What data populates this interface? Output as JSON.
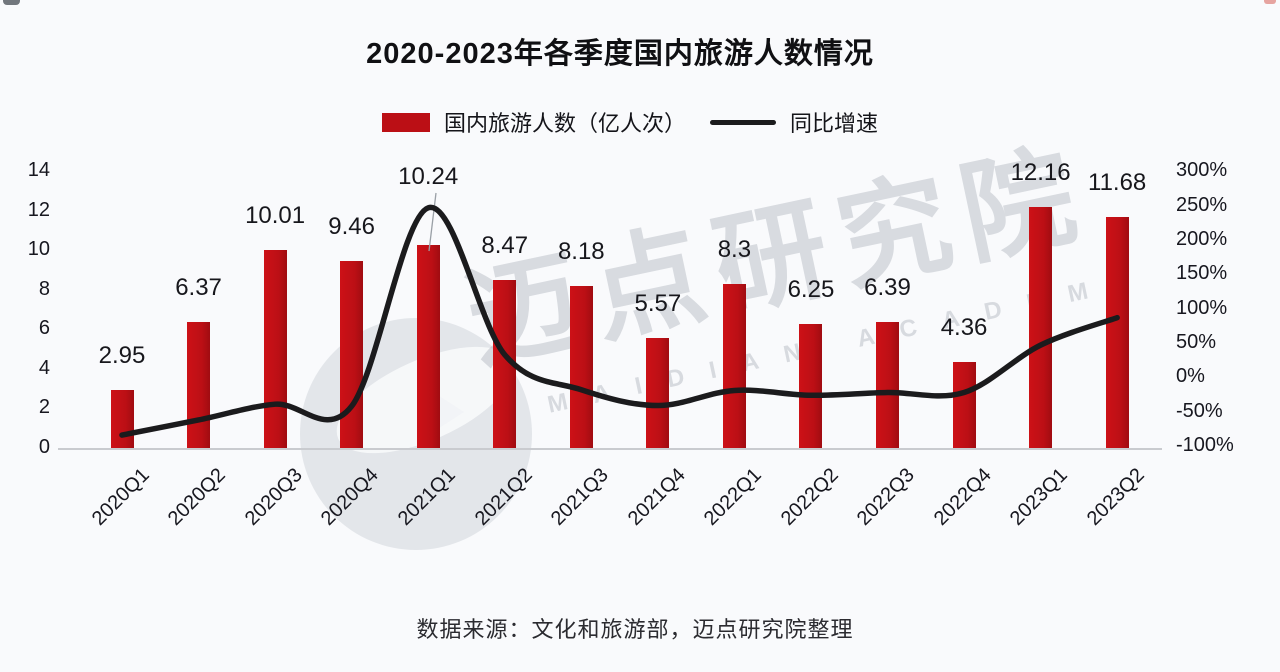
{
  "title": "2020-2023年各季度国内旅游人数情况",
  "legend": {
    "bars_label": "国内旅游人数（亿人次）",
    "line_label": "同比增速"
  },
  "source_note": "数据来源：文化和旅游部，迈点研究院整理",
  "watermark": {
    "text": "迈点研究院",
    "subtext": "MAIDIAN ACADEMY"
  },
  "colors": {
    "bar": "#bb0f15",
    "line": "#1b1b1d",
    "leader": "#9aa0a6",
    "axis": "#c9cbcf"
  },
  "chart_data": {
    "type": "bar+line combo",
    "title": "2020-2023年各季度国内旅游人数情况",
    "categories": [
      "2020Q1",
      "2020Q2",
      "2020Q3",
      "2020Q4",
      "2021Q1",
      "2021Q2",
      "2021Q3",
      "2021Q4",
      "2022Q1",
      "2022Q2",
      "2022Q3",
      "2022Q4",
      "2023Q1",
      "2023Q2"
    ],
    "series": [
      {
        "name": "国内旅游人数（亿人次）",
        "type": "bar",
        "axis": "left",
        "values": [
          2.95,
          6.37,
          10.01,
          9.46,
          10.24,
          8.47,
          8.18,
          5.57,
          8.3,
          6.25,
          6.39,
          4.36,
          12.16,
          11.68
        ],
        "labels": [
          "2.95",
          "6.37",
          "10.01",
          "9.46",
          "10.24",
          "8.47",
          "8.18",
          "5.57",
          "8.3",
          "6.25",
          "6.39",
          "4.36",
          "12.16",
          "11.68"
        ]
      },
      {
        "name": "同比增速",
        "type": "line",
        "axis": "right",
        "values_pct": [
          -84,
          -62,
          -39,
          -42,
          247,
          33,
          -18,
          -41,
          -19,
          -26,
          -22,
          -22,
          47,
          87
        ]
      }
    ],
    "left_axis": {
      "min": 0,
      "max": 14,
      "step": 2,
      "tick_labels": [
        "14",
        "12",
        "10",
        "8",
        "6",
        "4",
        "2",
        "0"
      ]
    },
    "right_axis": {
      "min": -100,
      "max": 300,
      "step": 50,
      "tick_labels": [
        "300%",
        "250%",
        "200%",
        "150%",
        "100%",
        "50%",
        "0%",
        "-50%",
        "-100%"
      ]
    },
    "grid": false,
    "legend_position": "top-center"
  }
}
